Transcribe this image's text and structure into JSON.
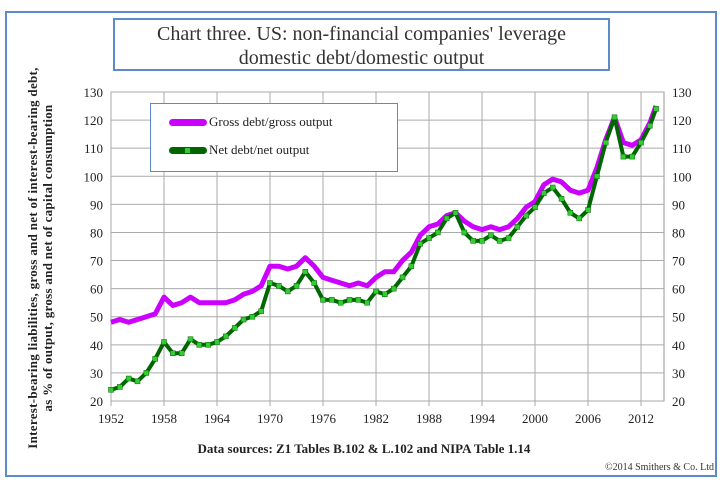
{
  "title_line1": "Chart three. US: non-financial companies' leverage",
  "title_line2": "domestic debt/domestic output",
  "source": "Data sources: Z1 Tables B.102 & L.102 and NIPA Table 1.14",
  "copyright": "©2014 Smithers & Co. Ltd",
  "chart_data": {
    "type": "line",
    "title": "Chart three. US: non-financial companies' leverage domestic debt/domestic output",
    "ylabel": "Interest-bearing liabilities, gross and net of interest-bearing debt, as % of output, gross and net of capital consumption",
    "xlabel": "",
    "ylim": [
      20,
      130
    ],
    "xlim": [
      1952,
      2014.6
    ],
    "yticks": [
      20,
      30,
      40,
      50,
      60,
      70,
      80,
      90,
      100,
      110,
      120,
      130
    ],
    "xticks": [
      1952,
      1958,
      1964,
      1970,
      1976,
      1982,
      1988,
      1994,
      2000,
      2006,
      2012
    ],
    "grid": true,
    "legend_position": "top-left",
    "x": [
      1952,
      1953,
      1954,
      1955,
      1956,
      1957,
      1958,
      1959,
      1960,
      1961,
      1962,
      1963,
      1964,
      1965,
      1966,
      1967,
      1968,
      1969,
      1970,
      1971,
      1972,
      1973,
      1974,
      1975,
      1976,
      1977,
      1978,
      1979,
      1980,
      1981,
      1982,
      1983,
      1984,
      1985,
      1986,
      1987,
      1988,
      1989,
      1990,
      1991,
      1992,
      1993,
      1994,
      1995,
      1996,
      1997,
      1998,
      1999,
      2000,
      2001,
      2002,
      2003,
      2004,
      2005,
      2006,
      2007,
      2008,
      2009,
      2010,
      2011,
      2012,
      2013,
      2013.7
    ],
    "series": [
      {
        "name": "Gross debt/gross output",
        "color": "#cc00ff",
        "values": [
          48,
          49,
          48,
          49,
          50,
          51,
          57,
          54,
          55,
          57,
          55,
          55,
          55,
          55,
          56,
          58,
          59,
          61,
          68,
          68,
          67,
          68,
          71,
          68,
          64,
          63,
          62,
          61,
          62,
          61,
          64,
          66,
          66,
          70,
          73,
          79,
          82,
          83,
          86,
          87,
          84,
          82,
          81,
          82,
          81,
          82,
          85,
          89,
          91,
          97,
          99,
          98,
          95,
          94,
          95,
          103,
          113,
          121,
          112,
          111,
          113,
          119,
          125
        ]
      },
      {
        "name": "Net debt/net output",
        "color": "#006600",
        "marker_color": "#33cc33",
        "values": [
          24,
          25,
          28,
          27,
          30,
          35,
          41,
          37,
          37,
          42,
          40,
          40,
          41,
          43,
          46,
          49,
          50,
          52,
          62,
          61,
          59,
          61,
          66,
          62,
          56,
          56,
          55,
          56,
          56,
          55,
          59,
          58,
          60,
          64,
          68,
          76,
          78,
          80,
          85,
          87,
          80,
          77,
          77,
          79,
          77,
          78,
          82,
          86,
          89,
          94,
          96,
          92,
          87,
          85,
          88,
          100,
          112,
          121,
          107,
          107,
          112,
          118,
          124
        ]
      }
    ]
  }
}
